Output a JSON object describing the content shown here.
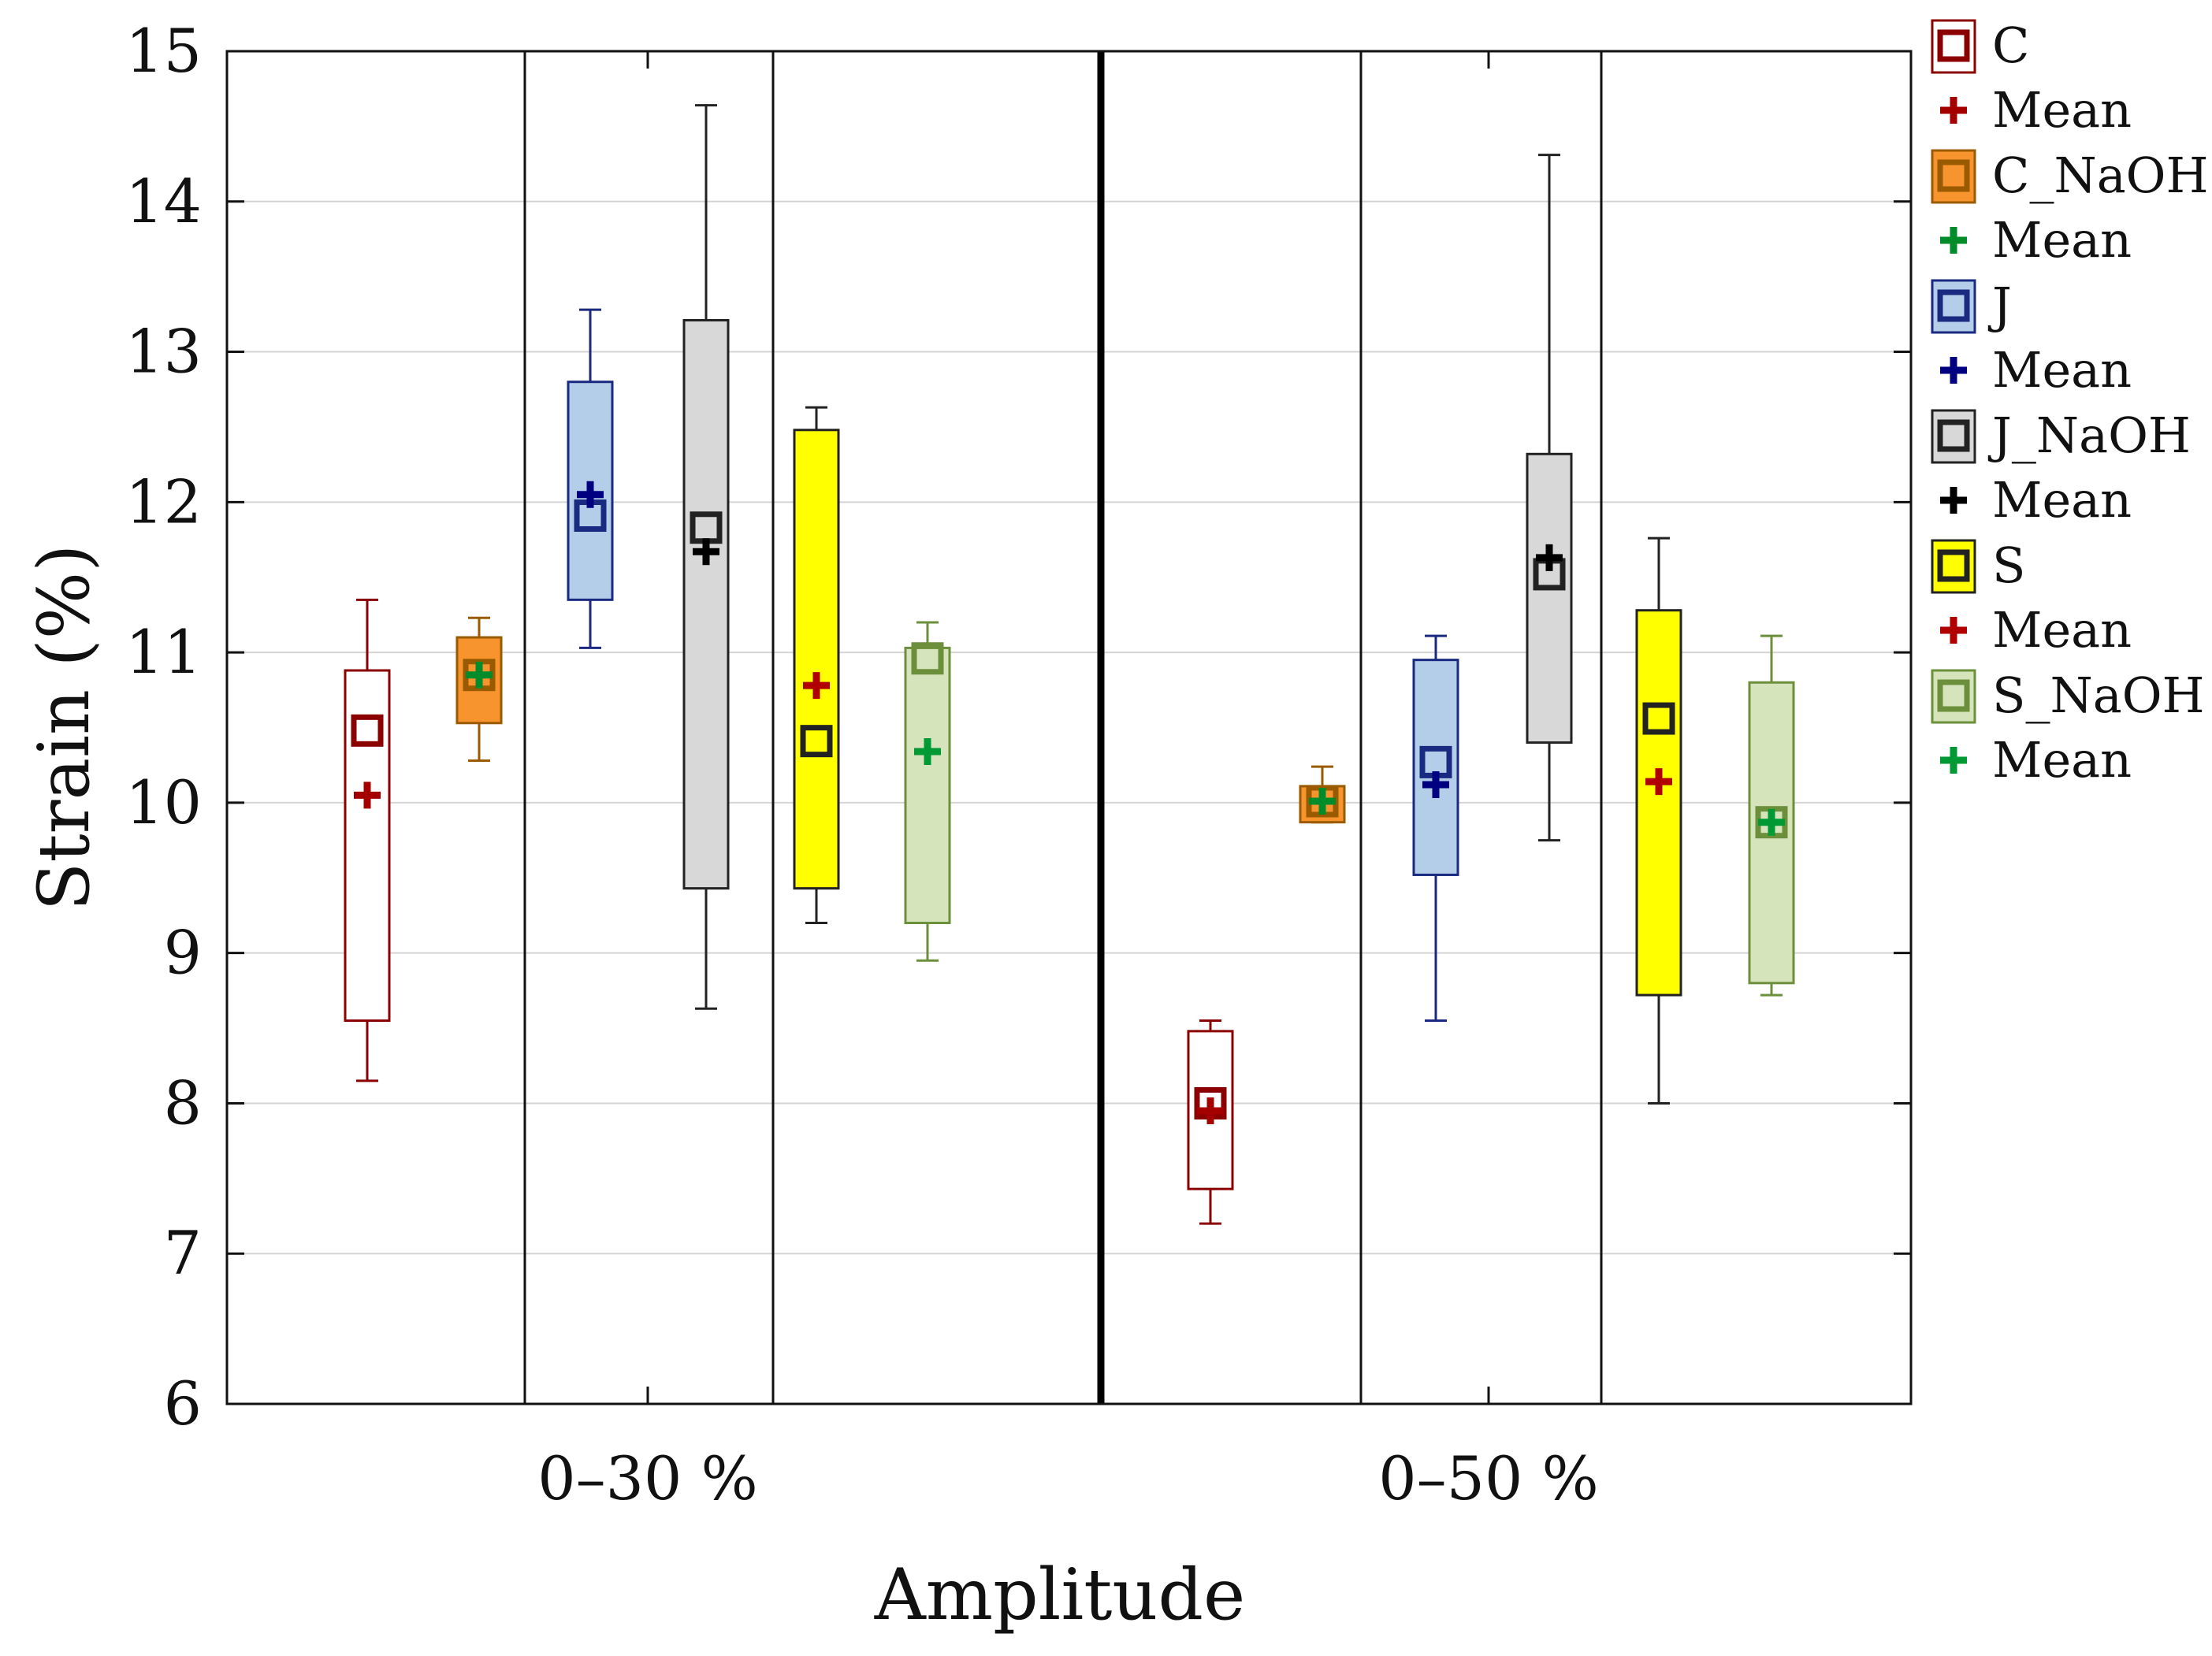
{
  "chart_data": {
    "type": "box",
    "title": "",
    "xlabel": "Amplitude",
    "ylabel": "Strain (%)",
    "ylim": [
      6,
      15
    ],
    "yticks": [
      6,
      7,
      8,
      9,
      10,
      11,
      12,
      13,
      14,
      15
    ],
    "grid": true,
    "legend_position": "right-outside",
    "groups": [
      "0–30 %",
      "0–50 %"
    ],
    "series": [
      {
        "name": "C",
        "mean_label": "Mean",
        "edge": "#8B0000",
        "fill": "#ffffff",
        "mean_color": "#A50000",
        "values": [
          {
            "min": 8.15,
            "q1": 8.55,
            "median": 10.48,
            "q3": 10.88,
            "max": 11.35,
            "mean": 10.05
          },
          {
            "min": 7.2,
            "q1": 7.43,
            "median": 8.0,
            "q3": 8.48,
            "max": 8.55,
            "mean": 7.95
          }
        ]
      },
      {
        "name": "C_NaOH",
        "mean_label": "Mean",
        "edge": "#9A5a00",
        "fill": "#F7942E",
        "mean_color": "#008C2A",
        "values": [
          {
            "min": 10.28,
            "q1": 10.53,
            "median": 10.85,
            "q3": 11.1,
            "max": 11.23,
            "mean": 10.85
          },
          {
            "min": 9.87,
            "q1": 9.87,
            "median": 10.01,
            "q3": 10.11,
            "max": 10.24,
            "mean": 10.01
          }
        ]
      },
      {
        "name": "J",
        "mean_label": "Mean",
        "edge": "#1a2a80",
        "fill": "#B4CDE8",
        "mean_color": "#000080",
        "values": [
          {
            "min": 11.03,
            "q1": 11.35,
            "median": 11.91,
            "q3": 12.8,
            "max": 13.28,
            "mean": 12.05
          },
          {
            "min": 8.55,
            "q1": 9.52,
            "median": 10.27,
            "q3": 10.95,
            "max": 11.11,
            "mean": 10.12
          }
        ]
      },
      {
        "name": "J_NaOH",
        "mean_label": "Mean",
        "edge": "#222222",
        "fill": "#D8D8D8",
        "mean_color": "#000000",
        "values": [
          {
            "min": 8.63,
            "q1": 9.43,
            "median": 11.83,
            "q3": 13.21,
            "max": 14.64,
            "mean": 11.67
          },
          {
            "min": 9.75,
            "q1": 10.4,
            "median": 11.52,
            "q3": 12.32,
            "max": 14.31,
            "mean": 11.63
          }
        ]
      },
      {
        "name": "S",
        "mean_label": "Mean",
        "edge": "#222222",
        "fill": "#FFFF00",
        "mean_color": "#B00000",
        "values": [
          {
            "min": 9.2,
            "q1": 9.43,
            "median": 10.41,
            "q3": 12.48,
            "max": 12.63,
            "mean": 10.78
          },
          {
            "min": 8.0,
            "q1": 8.72,
            "median": 10.56,
            "q3": 11.28,
            "max": 11.76,
            "mean": 10.14
          }
        ]
      },
      {
        "name": "S_NaOH",
        "mean_label": "Mean",
        "edge": "#6b8f3a",
        "fill": "#D6E4BC",
        "mean_color": "#009933",
        "values": [
          {
            "min": 8.95,
            "q1": 9.2,
            "median": 10.96,
            "q3": 11.03,
            "max": 11.2,
            "mean": 10.34
          },
          {
            "min": 8.72,
            "q1": 8.8,
            "median": 9.87,
            "q3": 10.8,
            "max": 11.11,
            "mean": 9.87
          }
        ]
      }
    ]
  }
}
